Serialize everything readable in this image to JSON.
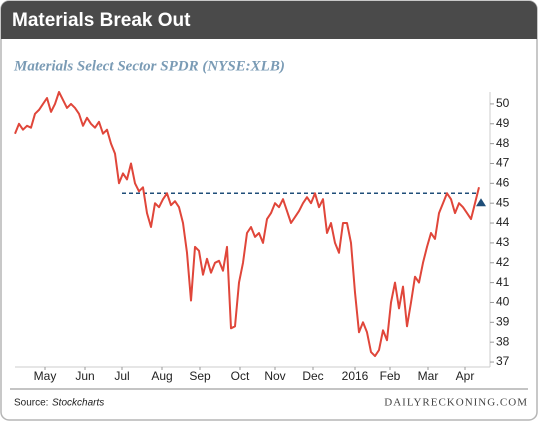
{
  "chart_data": {
    "type": "line",
    "title": "Materials Break Out",
    "subtitle": "Materials Select Sector SPDR (NYSE:XLB)",
    "source_prefix": "Source:",
    "source_name": "Stockcharts",
    "brand": "DAILYRECKONING.COM",
    "series": [
      {
        "name": "XLB",
        "color": "#e0463a",
        "values": [
          48.5,
          49.0,
          48.7,
          48.9,
          48.8,
          49.5,
          49.7,
          50.0,
          50.3,
          49.6,
          50.0,
          50.6,
          50.2,
          49.8,
          50.0,
          49.8,
          49.5,
          48.9,
          49.3,
          49.0,
          48.8,
          49.1,
          48.5,
          48.7,
          48.0,
          47.5,
          46.0,
          46.5,
          46.2,
          47.0,
          46.0,
          45.6,
          45.8,
          44.5,
          43.8,
          45.0,
          44.8,
          45.2,
          45.5,
          44.9,
          45.1,
          44.8,
          44.0,
          42.5,
          40.1,
          42.8,
          42.6,
          41.4,
          42.2,
          41.5,
          42.0,
          42.1,
          41.6,
          42.8,
          38.7,
          38.8,
          41.0,
          42.0,
          43.5,
          43.8,
          43.3,
          43.5,
          43.0,
          44.2,
          44.5,
          45.0,
          44.8,
          45.2,
          44.6,
          44.0,
          44.3,
          44.6,
          45.0,
          45.3,
          45.0,
          45.5,
          44.8,
          45.2,
          43.5,
          44.0,
          43.0,
          42.5,
          44.0,
          44.0,
          43.0,
          40.5,
          38.5,
          39.0,
          38.5,
          37.5,
          37.3,
          37.6,
          38.6,
          38.1,
          40.0,
          41.0,
          39.7,
          40.8,
          38.8,
          40.0,
          41.3,
          41.0,
          42.0,
          42.8,
          43.5,
          43.2,
          44.5,
          45.0,
          45.5,
          45.2,
          44.5,
          45.0,
          44.8,
          44.5,
          44.2,
          45.0,
          45.8
        ]
      }
    ],
    "xlim": [
      0,
      116
    ],
    "xticks": [
      {
        "value": 7.5,
        "label": "May"
      },
      {
        "value": 17.5,
        "label": "Jun"
      },
      {
        "value": 26.75,
        "label": "Jul"
      },
      {
        "value": 36.75,
        "label": "Aug"
      },
      {
        "value": 46.25,
        "label": "Sep"
      },
      {
        "value": 56.25,
        "label": "Oct"
      },
      {
        "value": 65,
        "label": "Nov"
      },
      {
        "value": 74.5,
        "label": "Dec"
      },
      {
        "value": 85,
        "label": "2016"
      },
      {
        "value": 93.75,
        "label": "Feb"
      },
      {
        "value": 103.25,
        "label": "Mar"
      },
      {
        "value": 112.5,
        "label": "Apr"
      }
    ],
    "ylim": [
      36.75,
      50.6
    ],
    "yticks": [
      37,
      38,
      39,
      40,
      41,
      42,
      43,
      44,
      45,
      46,
      47,
      48,
      49,
      50
    ],
    "reference_line": {
      "value": 45.5,
      "start": 26.75,
      "color": "#1f4e79"
    },
    "grid": false
  }
}
